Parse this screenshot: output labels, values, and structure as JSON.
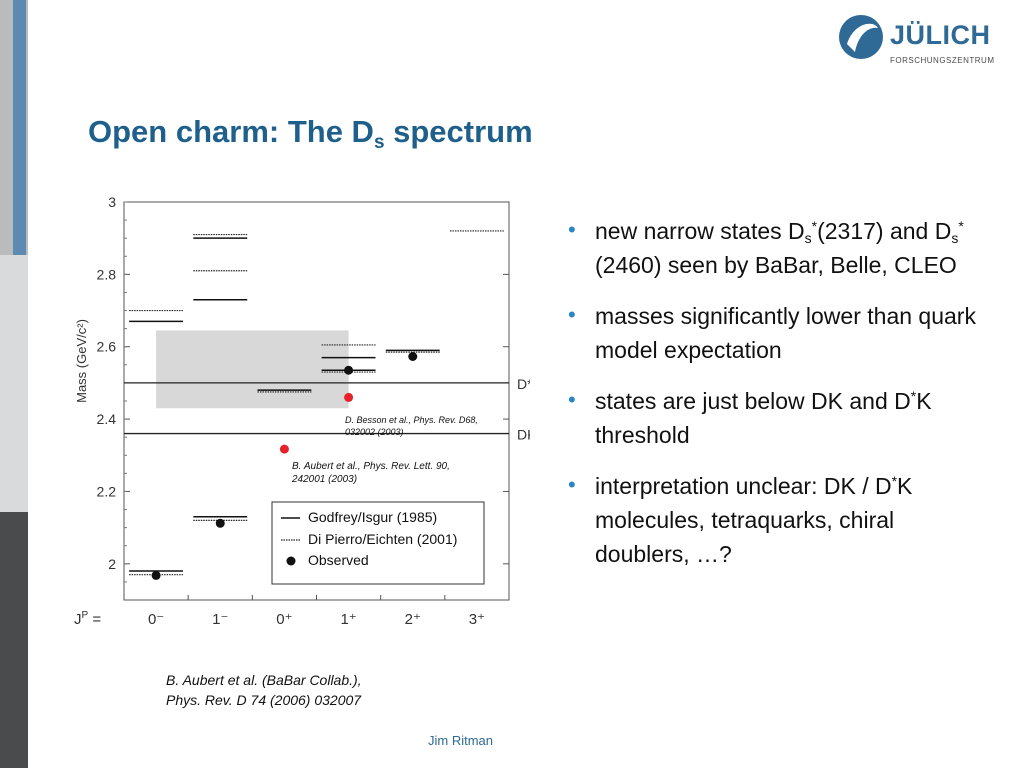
{
  "logo": {
    "name": "JÜLICH",
    "subtitle": "FORSCHUNGSZENTRUM"
  },
  "title": {
    "prefix": "Open charm:  The D",
    "subscript": "s",
    "suffix": " spectrum"
  },
  "chart_data": {
    "type": "scatter",
    "ylabel": "Mass (GeV/c²)",
    "ylim": [
      1.9,
      3.0
    ],
    "yticks": [
      2,
      2.2,
      2.4,
      2.6,
      2.8,
      3
    ],
    "ytick_labels": [
      "2",
      "2.2",
      "2.4",
      "2.6",
      "2.8",
      "3"
    ],
    "xlabel_prefix": "J",
    "xlabel_sup": "P",
    "xlabel_suffix": " =",
    "categories": [
      "0⁻",
      "1⁻",
      "0⁺",
      "1⁺",
      "2⁺",
      "3⁺"
    ],
    "thresholds": [
      {
        "label": "D*K",
        "value": 2.5
      },
      {
        "label": "DK",
        "value": 2.36
      }
    ],
    "highlight_box": {
      "x": [
        0.5,
        3.5
      ],
      "y": [
        2.43,
        2.645
      ]
    },
    "godfrey_isgur": [
      {
        "category": 0,
        "value": 1.98
      },
      {
        "category": 0,
        "value": 2.67
      },
      {
        "category": 1,
        "value": 2.13
      },
      {
        "category": 1,
        "value": 2.73
      },
      {
        "category": 1,
        "value": 2.9
      },
      {
        "category": 2,
        "value": 2.48
      },
      {
        "category": 3,
        "value": 2.535
      },
      {
        "category": 3,
        "value": 2.57
      },
      {
        "category": 4,
        "value": 2.59
      }
    ],
    "di_pierro_eichten": [
      {
        "category": 0,
        "value": 1.97
      },
      {
        "category": 0,
        "value": 2.7
      },
      {
        "category": 1,
        "value": 2.12
      },
      {
        "category": 1,
        "value": 2.81
      },
      {
        "category": 1,
        "value": 2.91
      },
      {
        "category": 2,
        "value": 2.475
      },
      {
        "category": 3,
        "value": 2.53
      },
      {
        "category": 3,
        "value": 2.605
      },
      {
        "category": 4,
        "value": 2.585
      },
      {
        "category": 5,
        "value": 2.92
      }
    ],
    "observed": [
      {
        "category": 0,
        "value": 1.968
      },
      {
        "category": 1,
        "value": 2.112
      },
      {
        "category": 3,
        "value": 2.535
      },
      {
        "category": 4,
        "value": 2.573
      }
    ],
    "new_states": [
      {
        "category": 2,
        "value": 2.317
      },
      {
        "category": 3,
        "value": 2.46
      }
    ],
    "legend": [
      "Godfrey/Isgur (1985)",
      "Di Pierro/Eichten (2001)",
      "Observed"
    ],
    "annotations": [
      "D. Besson et al., Phys. Rev. D68,",
      "032002 (2003)",
      "B. Aubert et al., Phys. Rev. Lett. 90,",
      "242001 (2003)"
    ],
    "colors": {
      "new_state": "#e8202a",
      "box": "#d8d8d8",
      "line": "#222222"
    }
  },
  "bullets": [
    {
      "parts": [
        {
          "t": "new narrow states D"
        },
        {
          "t": "s",
          "k": "sub"
        },
        {
          "t": "*",
          "k": "sup"
        },
        {
          "t": "(2317) and D"
        },
        {
          "t": "s",
          "k": "sub"
        },
        {
          "t": "*",
          "k": "sup"
        },
        {
          "t": "(2460) seen by BaBar, Belle, CLEO"
        }
      ]
    },
    {
      "parts": [
        {
          "t": "masses significantly lower than quark model expectation"
        }
      ]
    },
    {
      "parts": [
        {
          "t": "states are just below DK and D"
        },
        {
          "t": "*",
          "k": "sup"
        },
        {
          "t": "K threshold"
        }
      ]
    },
    {
      "parts": [
        {
          "t": "interpretation unclear: DK / D"
        },
        {
          "t": "*",
          "k": "sup"
        },
        {
          "t": "K molecules, tetraquarks, chiral doublers, …?"
        }
      ]
    }
  ],
  "reference": {
    "line1": "B. Aubert et al. (BaBar Collab.),",
    "line2": "Phys. Rev. D 74 (2006) 032007"
  },
  "footer": "Jim Ritman"
}
